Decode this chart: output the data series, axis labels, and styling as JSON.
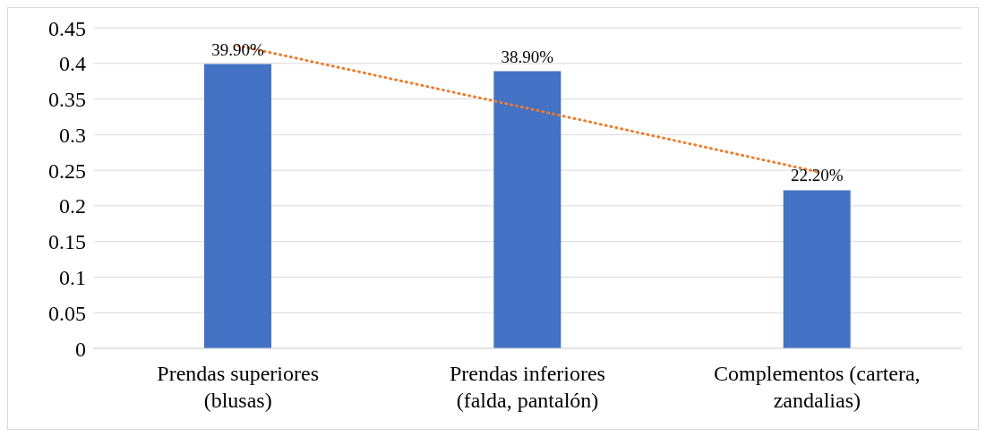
{
  "chart_data": {
    "type": "bar",
    "categories": [
      "Prendas superiores (blusas)",
      "Prendas inferiores (falda, pantalón)",
      "Complementos (cartera, zandalias)"
    ],
    "series": [
      {
        "color": "#4472c4",
        "values": [
          0.399,
          0.389,
          0.222
        ],
        "value_labels": [
          "39.90%",
          "38.90%",
          "22.20%"
        ]
      },
      {
        "type": "line",
        "color": "#ed7d31",
        "values": [
          0.425,
          0.337,
          0.248
        ],
        "line_style": "dotted",
        "marker": "none"
      }
    ],
    "ylim": [
      0,
      0.45
    ],
    "yticks": [
      0,
      0.05,
      0.1,
      0.15,
      0.2,
      0.25,
      0.3,
      0.35,
      0.4,
      0.45
    ],
    "grid": "y",
    "legend": false
  }
}
